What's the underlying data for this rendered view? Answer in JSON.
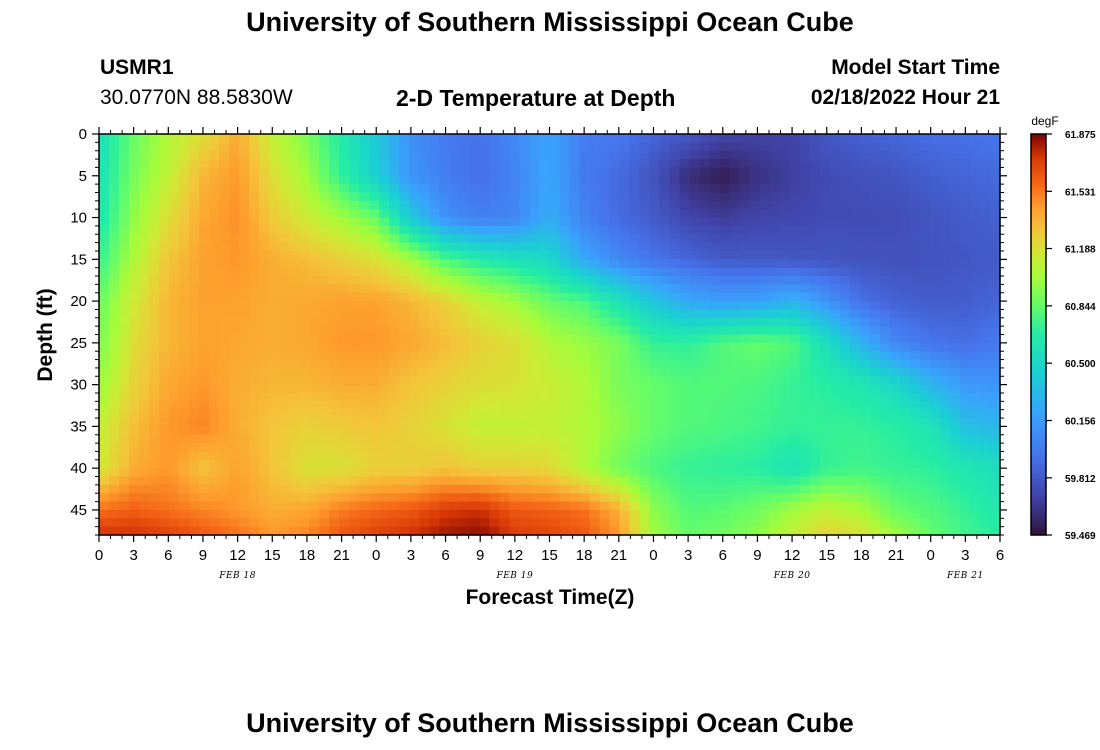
{
  "page": {
    "title": "University of Southern Mississippi Ocean Cube",
    "footer_title": "University of Southern Mississippi Ocean Cube",
    "station": "USMR1",
    "coords": "30.0770N  88.5830W",
    "plot_title": "2-D Temperature at Depth",
    "model_start_label": "Model Start Time",
    "model_start_value": "02/18/2022 Hour 21"
  },
  "chart_data": {
    "type": "heatmap",
    "title": "2-D Temperature at Depth",
    "xlabel": "Forecast Time(Z)",
    "ylabel": "Depth (ft)",
    "colorbar_unit": "degF",
    "x_range": [
      0,
      78
    ],
    "y_range": [
      0,
      48
    ],
    "x_ticks": [
      0,
      3,
      6,
      9,
      12,
      15,
      18,
      21,
      24,
      27,
      30,
      33,
      36,
      39,
      42,
      45,
      48,
      51,
      54,
      57,
      60,
      63,
      66,
      69,
      72,
      75,
      78
    ],
    "x_tick_labels": [
      "0",
      "3",
      "6",
      "9",
      "12",
      "15",
      "18",
      "21",
      "0",
      "3",
      "6",
      "9",
      "12",
      "15",
      "18",
      "21",
      "0",
      "3",
      "6",
      "9",
      "12",
      "15",
      "18",
      "21",
      "0",
      "3",
      "6"
    ],
    "y_ticks": [
      0,
      5,
      10,
      15,
      20,
      25,
      30,
      35,
      40,
      45
    ],
    "y_tick_labels": [
      "0",
      "5",
      "10",
      "15",
      "20",
      "25",
      "30",
      "35",
      "40",
      "45"
    ],
    "date_labels": [
      {
        "text": "FEB 18",
        "x": 12
      },
      {
        "text": "FEB 19",
        "x": 36
      },
      {
        "text": "FEB 20",
        "x": 60
      },
      {
        "text": "FEB 21",
        "x": 75
      }
    ],
    "colorbar_ticks": [
      61.875,
      61.531,
      61.188,
      60.844,
      60.5,
      60.156,
      59.812,
      59.469
    ],
    "colorbar_tick_labels": [
      "61.875",
      "61.531",
      "61.188",
      "60.844",
      "60.500",
      "60.156",
      "59.812",
      "59.469"
    ],
    "value_range": [
      59.469,
      61.875
    ],
    "colors": {
      "low": "#30123b",
      "mid": "#7cf959",
      "high": "#7a0403"
    },
    "grid_times": [
      0,
      3,
      6,
      9,
      12,
      15,
      18,
      21,
      24,
      27,
      30,
      33,
      36,
      39,
      42,
      45,
      48,
      51,
      54,
      57,
      60,
      63,
      66,
      69,
      72,
      75,
      78
    ],
    "grid_depths": [
      0,
      5,
      10,
      15,
      20,
      25,
      30,
      35,
      40,
      45,
      48
    ],
    "values": [
      [
        60.56,
        60.86,
        61.05,
        61.2,
        61.39,
        61.1,
        60.9,
        60.65,
        60.4,
        60.1,
        59.98,
        59.93,
        60.06,
        60.2,
        60.0,
        59.97,
        59.87,
        59.8,
        59.72,
        59.7,
        59.7,
        59.8,
        59.85,
        59.88,
        59.92,
        59.93,
        59.95
      ],
      [
        60.58,
        60.9,
        61.1,
        61.35,
        61.45,
        61.2,
        61.0,
        60.7,
        60.43,
        60.12,
        60.0,
        59.92,
        60.03,
        60.22,
        59.98,
        59.9,
        59.78,
        59.6,
        59.52,
        59.62,
        59.68,
        59.74,
        59.77,
        59.79,
        59.84,
        59.87,
        59.9
      ],
      [
        60.62,
        60.96,
        61.2,
        61.4,
        61.47,
        61.28,
        61.13,
        61.0,
        60.85,
        60.4,
        60.1,
        60.0,
        60.04,
        60.25,
        60.02,
        59.9,
        59.82,
        59.71,
        59.67,
        59.71,
        59.72,
        59.74,
        59.74,
        59.75,
        59.79,
        59.82,
        59.85
      ],
      [
        60.72,
        61.05,
        61.3,
        61.42,
        61.45,
        61.38,
        61.33,
        61.26,
        61.18,
        61.02,
        60.78,
        60.66,
        60.58,
        60.5,
        60.22,
        60.05,
        59.95,
        59.88,
        59.82,
        59.81,
        59.8,
        59.79,
        59.78,
        59.77,
        59.78,
        59.8,
        59.82
      ],
      [
        60.85,
        61.15,
        61.35,
        61.42,
        61.42,
        61.38,
        61.4,
        61.42,
        61.42,
        61.35,
        61.25,
        61.1,
        61.0,
        60.85,
        60.78,
        60.58,
        60.38,
        60.22,
        60.17,
        60.19,
        60.28,
        60.12,
        59.93,
        59.85,
        59.82,
        59.83,
        59.87
      ],
      [
        60.9,
        61.2,
        61.35,
        61.42,
        61.4,
        61.38,
        61.4,
        61.45,
        61.45,
        61.4,
        61.33,
        61.25,
        61.2,
        61.05,
        60.98,
        60.9,
        60.72,
        60.7,
        60.8,
        60.85,
        60.8,
        60.55,
        60.28,
        60.05,
        59.95,
        59.92,
        59.98
      ],
      [
        60.98,
        61.25,
        61.4,
        61.45,
        61.38,
        61.35,
        61.35,
        61.38,
        61.38,
        61.3,
        61.25,
        61.2,
        61.18,
        61.13,
        61.05,
        60.9,
        60.85,
        60.8,
        60.8,
        60.78,
        60.72,
        60.68,
        60.62,
        60.5,
        60.3,
        60.15,
        60.12
      ],
      [
        61.1,
        61.32,
        61.45,
        61.5,
        61.38,
        61.3,
        61.25,
        61.28,
        61.3,
        61.25,
        61.18,
        61.1,
        61.1,
        61.1,
        61.05,
        60.95,
        60.85,
        60.8,
        60.78,
        60.75,
        60.72,
        60.72,
        60.72,
        60.68,
        60.6,
        60.35,
        60.3
      ],
      [
        61.15,
        61.38,
        61.45,
        61.3,
        61.42,
        61.3,
        61.18,
        61.18,
        61.25,
        61.25,
        61.3,
        61.25,
        61.25,
        61.22,
        61.05,
        60.88,
        60.78,
        60.72,
        60.7,
        60.68,
        60.58,
        60.72,
        60.75,
        60.72,
        60.7,
        60.62,
        60.55
      ],
      [
        61.55,
        61.6,
        61.55,
        61.5,
        61.45,
        61.38,
        61.4,
        61.52,
        61.58,
        61.62,
        61.72,
        61.75,
        61.62,
        61.6,
        61.55,
        61.38,
        60.95,
        60.8,
        60.82,
        60.88,
        61.0,
        61.1,
        61.02,
        60.85,
        60.8,
        60.72,
        60.62
      ],
      [
        61.75,
        61.75,
        61.7,
        61.62,
        61.55,
        61.45,
        61.5,
        61.62,
        61.7,
        61.75,
        61.82,
        61.85,
        61.72,
        61.68,
        61.62,
        61.45,
        61.0,
        60.85,
        60.88,
        60.95,
        61.1,
        61.25,
        61.18,
        61.0,
        60.85,
        60.75,
        60.68
      ]
    ]
  }
}
